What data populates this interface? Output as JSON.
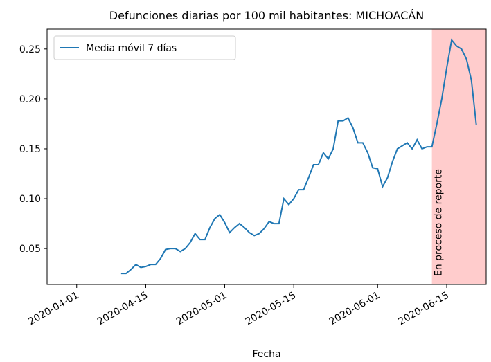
{
  "chart_data": {
    "type": "line",
    "title": "Defunciones diarias por 100 mil habitantes: MICHOACÁN",
    "x_label": "Fecha",
    "x": [
      "2020-04-10",
      "2020-04-11",
      "2020-04-12",
      "2020-04-13",
      "2020-04-14",
      "2020-04-15",
      "2020-04-16",
      "2020-04-17",
      "2020-04-18",
      "2020-04-19",
      "2020-04-20",
      "2020-04-21",
      "2020-04-22",
      "2020-04-23",
      "2020-04-24",
      "2020-04-25",
      "2020-04-26",
      "2020-04-27",
      "2020-04-28",
      "2020-04-29",
      "2020-04-30",
      "2020-05-01",
      "2020-05-02",
      "2020-05-03",
      "2020-05-04",
      "2020-05-05",
      "2020-05-06",
      "2020-05-07",
      "2020-05-08",
      "2020-05-09",
      "2020-05-10",
      "2020-05-11",
      "2020-05-12",
      "2020-05-13",
      "2020-05-14",
      "2020-05-15",
      "2020-05-16",
      "2020-05-17",
      "2020-05-18",
      "2020-05-19",
      "2020-05-20",
      "2020-05-21",
      "2020-05-22",
      "2020-05-23",
      "2020-05-24",
      "2020-05-25",
      "2020-05-26",
      "2020-05-27",
      "2020-05-28",
      "2020-05-29",
      "2020-05-30",
      "2020-05-31",
      "2020-06-01",
      "2020-06-02",
      "2020-06-03",
      "2020-06-04",
      "2020-06-05",
      "2020-06-06",
      "2020-06-07",
      "2020-06-08",
      "2020-06-09",
      "2020-06-10",
      "2020-06-11",
      "2020-06-12",
      "2020-06-13",
      "2020-06-14",
      "2020-06-15",
      "2020-06-16",
      "2020-06-17",
      "2020-06-18",
      "2020-06-19",
      "2020-06-20",
      "2020-06-21"
    ],
    "series": [
      {
        "name": "Media móvil 7 días",
        "color": "#1f77b4",
        "values": [
          0.025,
          0.025,
          0.029,
          0.034,
          0.031,
          0.032,
          0.034,
          0.034,
          0.04,
          0.049,
          0.05,
          0.05,
          0.047,
          0.05,
          0.056,
          0.065,
          0.059,
          0.059,
          0.071,
          0.08,
          0.084,
          0.076,
          0.066,
          0.071,
          0.075,
          0.071,
          0.066,
          0.063,
          0.065,
          0.07,
          0.077,
          0.075,
          0.075,
          0.1,
          0.094,
          0.1,
          0.109,
          0.109,
          0.121,
          0.134,
          0.134,
          0.146,
          0.14,
          0.15,
          0.178,
          0.178,
          0.181,
          0.171,
          0.156,
          0.156,
          0.146,
          0.131,
          0.13,
          0.112,
          0.121,
          0.137,
          0.15,
          0.153,
          0.156,
          0.15,
          0.159,
          0.15,
          0.152,
          0.152,
          0.175,
          0.2,
          0.231,
          0.259,
          0.253,
          0.25,
          0.24,
          0.219,
          0.174
        ]
      }
    ],
    "xlim": [
      "2020-03-26",
      "2020-06-23"
    ],
    "xticks": [
      "2020-04-01",
      "2020-04-15",
      "2020-05-01",
      "2020-05-15",
      "2020-06-01",
      "2020-06-15"
    ],
    "ylim": [
      0.014,
      0.27
    ],
    "yticks": [
      0.05,
      0.1,
      0.15,
      0.2,
      0.25
    ],
    "shade": {
      "x": [
        "2020-06-12",
        "2020-06-23"
      ],
      "color": "#ffcccc",
      "label": "En proceso de reporte"
    },
    "legend": "upper left"
  }
}
